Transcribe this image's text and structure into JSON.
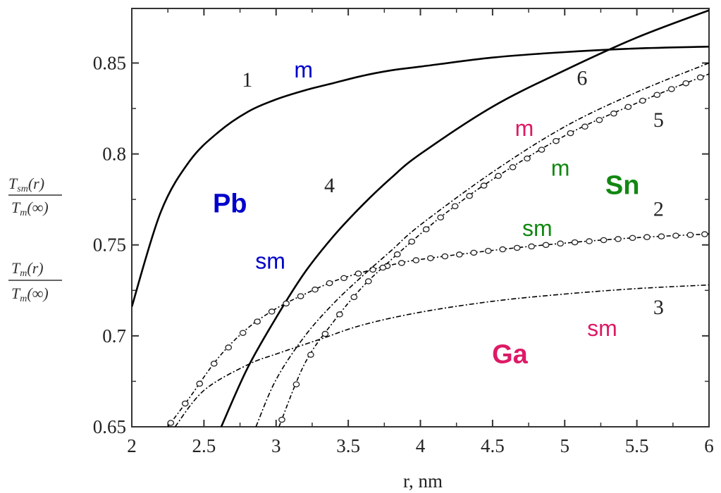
{
  "chart_data": {
    "type": "line",
    "xlabel": "r, nm",
    "xlim": [
      2,
      6
    ],
    "ylim": [
      0.65,
      0.88
    ],
    "x_ticks": [
      "2",
      "2.5",
      "3",
      "3.5",
      "4",
      "4.5",
      "5",
      "5.5",
      "6"
    ],
    "y_ticks": [
      "0.65",
      "0.7",
      "0.75",
      "0.8",
      "0.85"
    ],
    "ylabel_top": {
      "num_main": "T",
      "num_sub": "sm",
      "num_arg": "(r)",
      "den_main": "T",
      "den_sub": "m",
      "den_arg": "(∞)"
    },
    "ylabel_bottom": {
      "num_main": "T",
      "num_sub": "m",
      "num_arg": "(r)",
      "den_main": "T",
      "den_sub": "m",
      "den_arg": "(∞)"
    },
    "series": [
      {
        "label": "1",
        "style": "solid",
        "color": "#000000",
        "x": [
          2.0,
          2.2,
          2.4,
          2.6,
          2.8,
          3.0,
          3.2,
          3.4,
          3.6,
          3.8,
          4.0,
          4.5,
          5.0,
          5.5,
          6.0
        ],
        "y": [
          0.716,
          0.768,
          0.796,
          0.812,
          0.823,
          0.83,
          0.835,
          0.839,
          0.843,
          0.846,
          0.848,
          0.853,
          0.856,
          0.858,
          0.859
        ]
      },
      {
        "label": "4",
        "style": "solid",
        "color": "#000000",
        "x": [
          2.62,
          2.8,
          3.0,
          3.2,
          3.4,
          3.6,
          3.8,
          4.0,
          4.5,
          5.0,
          5.5,
          6.0
        ],
        "y": [
          0.65,
          0.682,
          0.71,
          0.735,
          0.755,
          0.772,
          0.787,
          0.8,
          0.826,
          0.846,
          0.864,
          0.879
        ]
      },
      {
        "label": "2",
        "style": "dash-dot-markers",
        "color": "#000000",
        "x": [
          2.25,
          2.4,
          2.6,
          2.8,
          3.0,
          3.2,
          3.4,
          3.6,
          3.8,
          4.0,
          4.5,
          5.0,
          5.5,
          6.0
        ],
        "y": [
          0.65,
          0.666,
          0.688,
          0.704,
          0.715,
          0.723,
          0.73,
          0.735,
          0.739,
          0.742,
          0.747,
          0.751,
          0.754,
          0.756
        ]
      },
      {
        "label": "5",
        "style": "dash-dot-markers",
        "color": "#000000",
        "x": [
          3.02,
          3.2,
          3.4,
          3.6,
          3.8,
          4.0,
          4.2,
          4.5,
          5.0,
          5.5,
          6.0
        ],
        "y": [
          0.65,
          0.685,
          0.708,
          0.727,
          0.742,
          0.756,
          0.769,
          0.786,
          0.81,
          0.828,
          0.844
        ]
      },
      {
        "label": "3",
        "style": "dash-dot",
        "color": "#000000",
        "x": [
          2.3,
          2.5,
          2.8,
          3.0,
          3.3,
          3.6,
          4.0,
          4.5,
          5.0,
          5.5,
          6.0
        ],
        "y": [
          0.65,
          0.67,
          0.684,
          0.69,
          0.698,
          0.706,
          0.713,
          0.719,
          0.723,
          0.726,
          0.728
        ]
      },
      {
        "label": "6",
        "style": "dash-dot",
        "color": "#000000",
        "x": [
          2.86,
          3.0,
          3.2,
          3.4,
          3.6,
          3.8,
          4.0,
          4.5,
          5.0,
          5.5,
          6.0
        ],
        "y": [
          0.65,
          0.676,
          0.7,
          0.718,
          0.733,
          0.747,
          0.761,
          0.79,
          0.815,
          0.834,
          0.85
        ]
      }
    ],
    "curve_numbers": [
      {
        "text": "1",
        "x": 2.8,
        "y": 0.837
      },
      {
        "text": "4",
        "x": 3.37,
        "y": 0.779
      },
      {
        "text": "6",
        "x": 5.12,
        "y": 0.838
      },
      {
        "text": "5",
        "x": 5.65,
        "y": 0.815
      },
      {
        "text": "2",
        "x": 5.65,
        "y": 0.766
      },
      {
        "text": "3",
        "x": 5.65,
        "y": 0.712
      }
    ],
    "annotations": [
      {
        "text": "m",
        "x": 3.19,
        "y": 0.842,
        "color": "#0000cc",
        "bold": false
      },
      {
        "text": "Pb",
        "x": 2.68,
        "y": 0.768,
        "color": "#0000cc",
        "bold": true
      },
      {
        "text": "sm",
        "x": 2.96,
        "y": 0.737,
        "color": "#0000cc",
        "bold": false
      },
      {
        "text": "m",
        "x": 4.72,
        "y": 0.81,
        "color": "#dd1a66",
        "bold": false
      },
      {
        "text": "Ga",
        "x": 4.62,
        "y": 0.685,
        "color": "#dd1a66",
        "bold": true
      },
      {
        "text": "sm",
        "x": 5.26,
        "y": 0.7,
        "color": "#dd1a66",
        "bold": false
      },
      {
        "text": "m",
        "x": 4.97,
        "y": 0.788,
        "color": "#118811",
        "bold": false
      },
      {
        "text": "Sn",
        "x": 5.4,
        "y": 0.778,
        "color": "#118811",
        "bold": true
      },
      {
        "text": "sm",
        "x": 4.81,
        "y": 0.755,
        "color": "#118811",
        "bold": false
      }
    ]
  }
}
